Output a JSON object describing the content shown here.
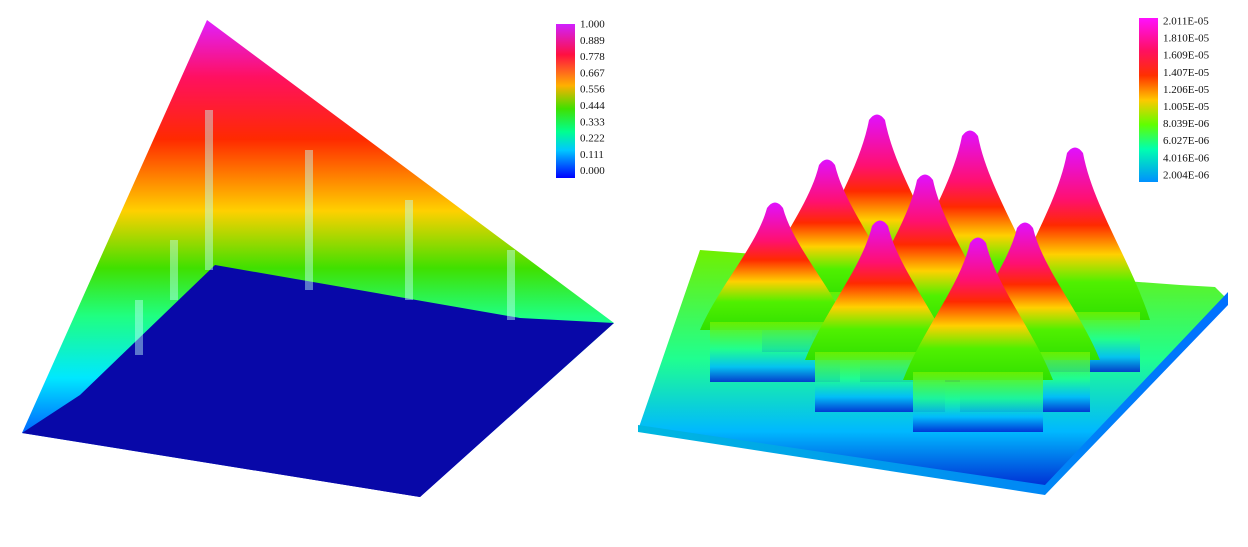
{
  "left_colorbar": {
    "labels": [
      "1.000",
      "0.889",
      "0.778",
      "0.667",
      "0.556",
      "0.444",
      "0.333",
      "0.222",
      "0.111",
      "0.000"
    ]
  },
  "right_colorbar": {
    "labels": [
      "2.011E-05",
      "1.810E-05",
      "1.609E-05",
      "1.407E-05",
      "1.206E-05",
      "1.005E-05",
      "8.039E-06",
      "6.027E-06",
      "4.016E-06",
      "2.004E-06"
    ]
  }
}
